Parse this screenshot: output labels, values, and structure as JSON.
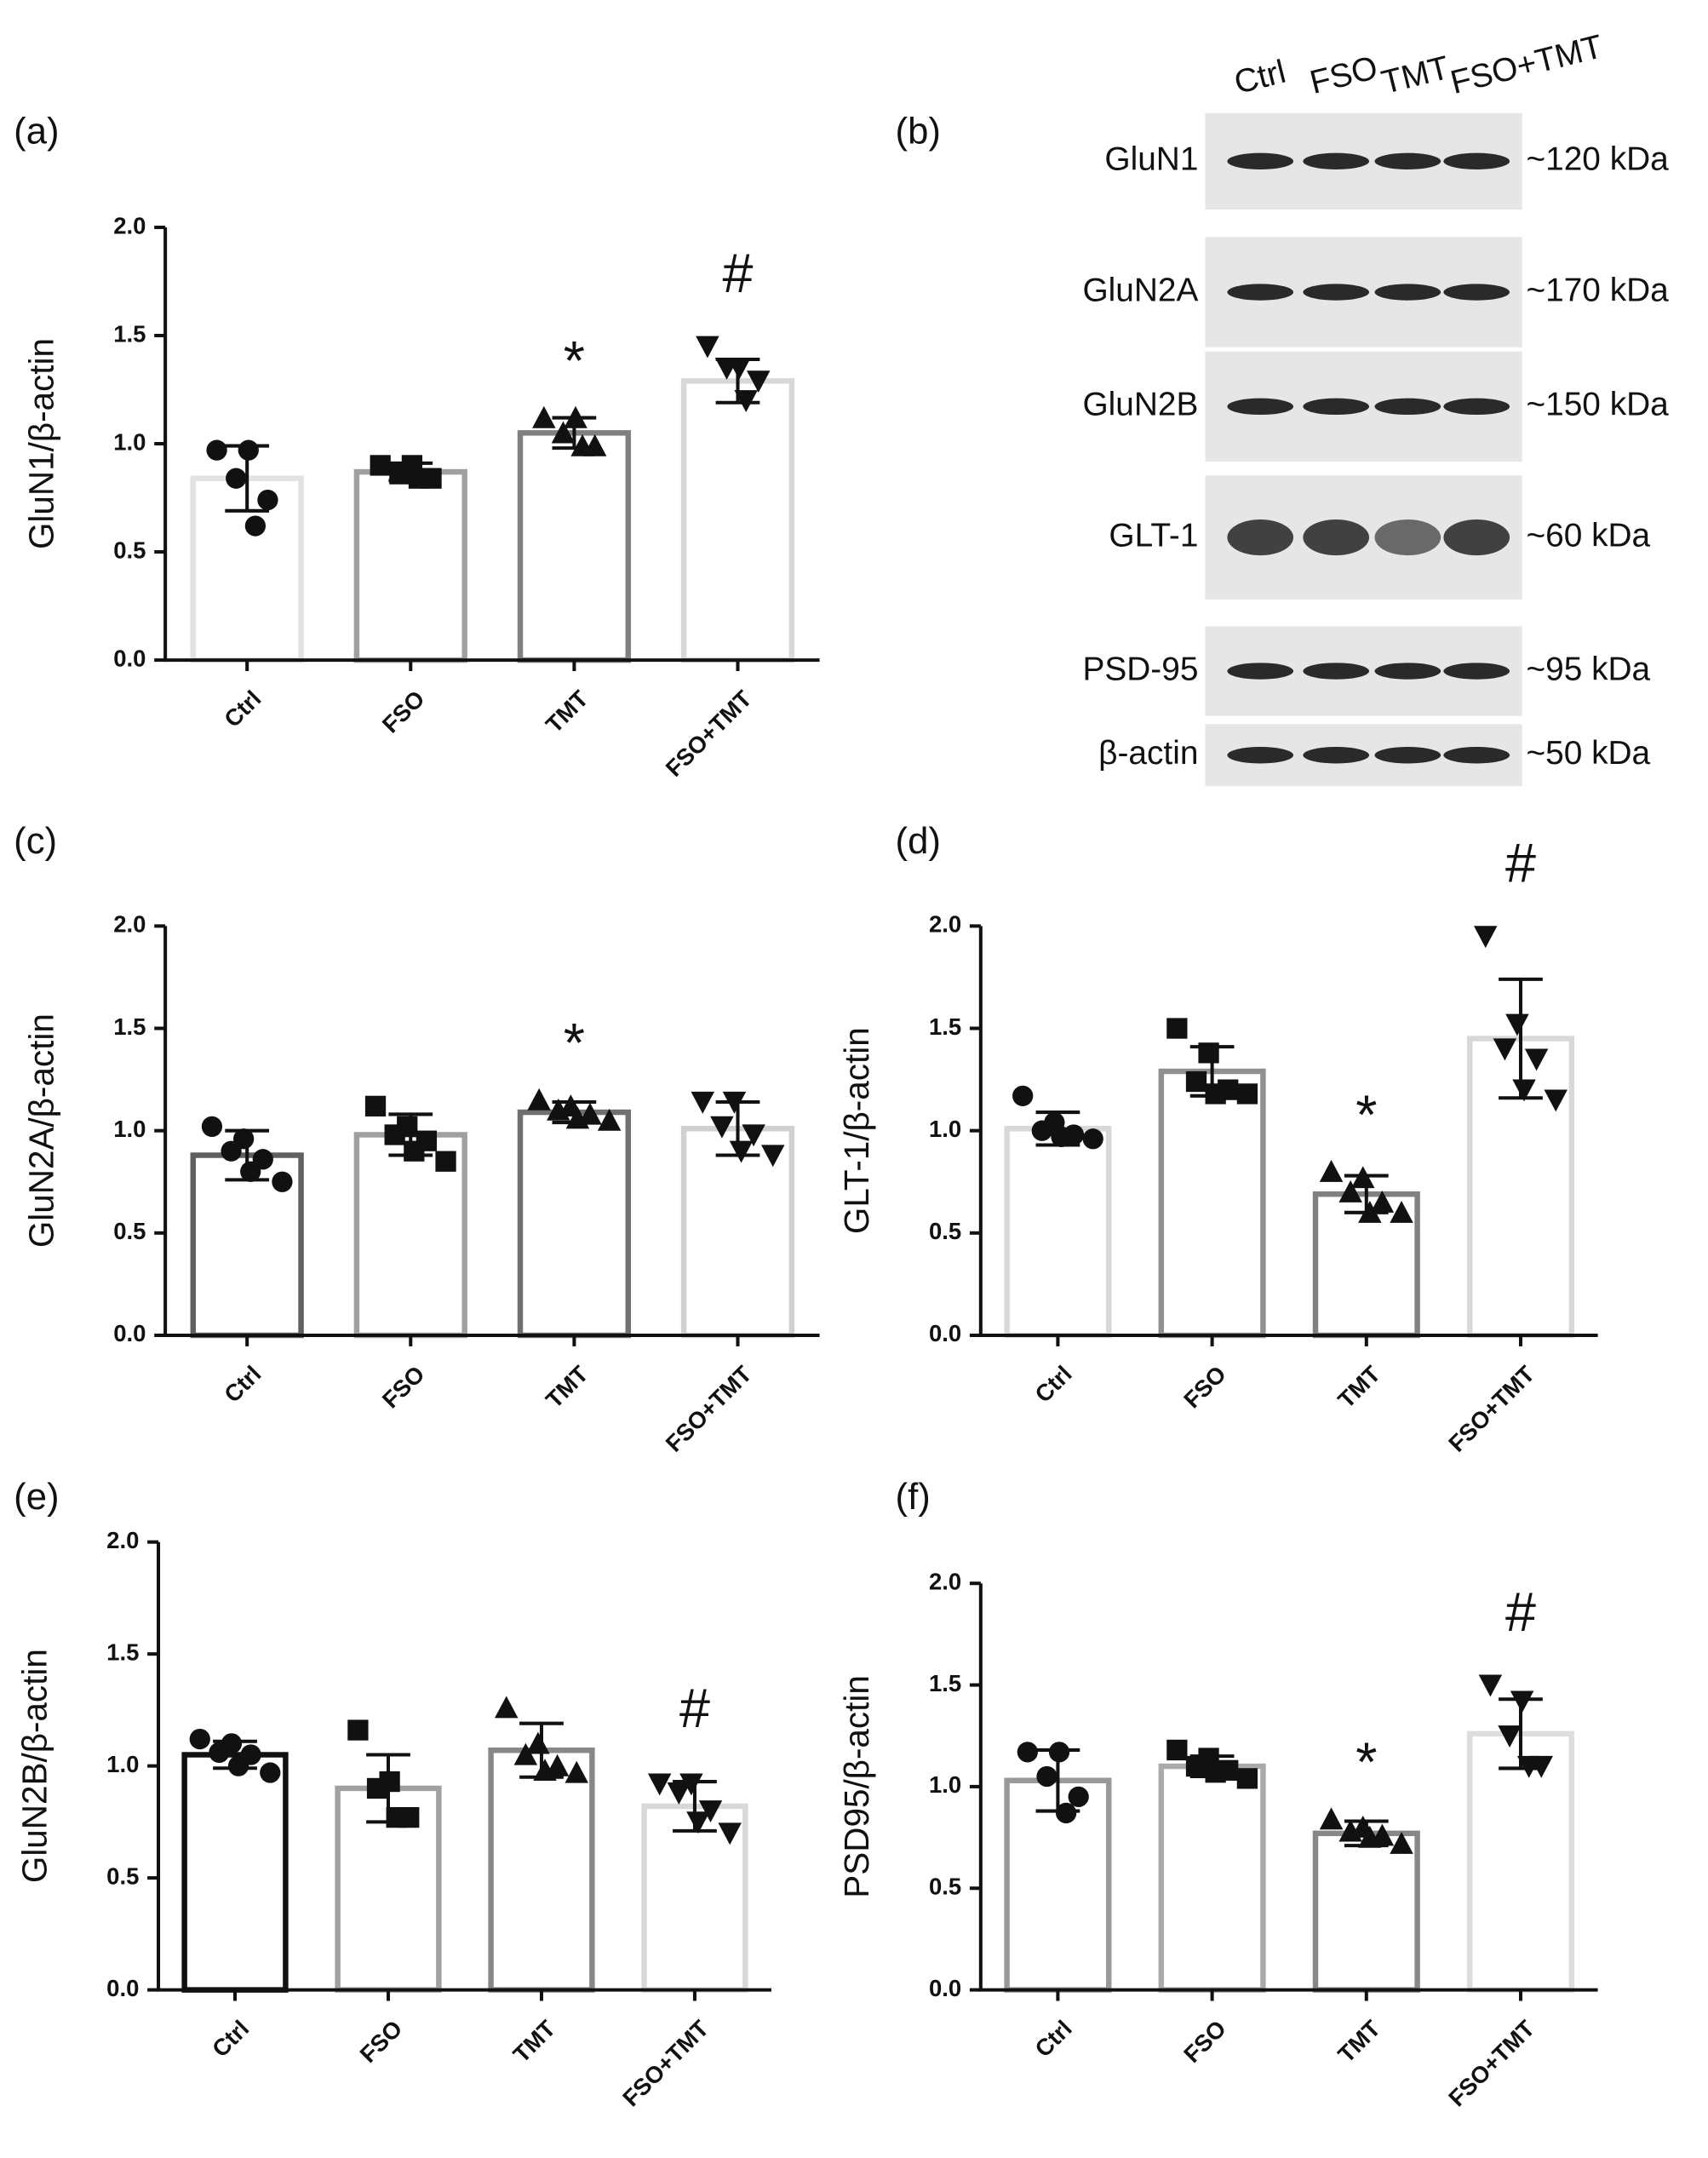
{
  "chart_data": [
    {
      "type": "bar",
      "panel_label": "(a)",
      "ylabel": "GluN1/β-actin",
      "categories": [
        "Ctrl",
        "FSO",
        "TMT",
        "FSO+TMT"
      ],
      "values": [
        0.84,
        0.87,
        1.05,
        1.29
      ],
      "errors": [
        0.15,
        0.04,
        0.07,
        0.1
      ],
      "points": [
        [
          0.97,
          0.97,
          0.84,
          0.74,
          0.62
        ],
        [
          0.9,
          0.9,
          0.86,
          0.84,
          0.84
        ],
        [
          1.12,
          1.12,
          1.05,
          0.99,
          0.99
        ],
        [
          1.45,
          1.35,
          1.35,
          1.29,
          1.2
        ]
      ],
      "markers": [
        "circle",
        "square",
        "triangle",
        "triangle-down"
      ],
      "colors": [
        "#e2e2e2",
        "#a0a0a0",
        "#808080",
        "#d8d8d8"
      ],
      "annotations": [
        null,
        null,
        "*",
        "#"
      ],
      "ylim": [
        0,
        2
      ],
      "yticks": [
        {
          "value": 0,
          "label": "0.0"
        },
        0.5,
        {
          "value": 1,
          "label": "1.0"
        },
        1.5,
        {
          "value": 2,
          "label": "2.0"
        }
      ]
    },
    {
      "type": "bar",
      "panel_label": "(c)",
      "ylabel": "GluN2A/β-actin",
      "categories": [
        "Ctrl",
        "FSO",
        "TMT",
        "FSO+TMT"
      ],
      "values": [
        0.88,
        0.98,
        1.09,
        1.01
      ],
      "errors": [
        0.12,
        0.1,
        0.05,
        0.13
      ],
      "points": [
        [
          1.02,
          0.96,
          0.9,
          0.86,
          0.8,
          0.75
        ],
        [
          1.12,
          1.02,
          0.98,
          0.95,
          0.9,
          0.85
        ],
        [
          1.15,
          1.12,
          1.1,
          1.08,
          1.06,
          1.05
        ],
        [
          1.14,
          1.14,
          1.02,
          0.98,
          0.9,
          0.88
        ]
      ],
      "markers": [
        "circle",
        "square",
        "triangle",
        "triangle-down"
      ],
      "colors": [
        "#606060",
        "#a0a0a0",
        "#707070",
        "#d0d0d0"
      ],
      "annotations": [
        null,
        null,
        "*",
        null
      ],
      "ylim": [
        0,
        2
      ],
      "yticks": [
        {
          "value": 0,
          "label": "0.0"
        },
        0.5,
        {
          "value": 1,
          "label": "1.0"
        },
        1.5,
        {
          "value": 2,
          "label": "2.0"
        }
      ]
    },
    {
      "type": "bar",
      "panel_label": "(d)",
      "ylabel": "GLT-1/β-actin",
      "categories": [
        "Ctrl",
        "FSO",
        "TMT",
        "FSO+TMT"
      ],
      "values": [
        1.01,
        1.29,
        0.69,
        1.45
      ],
      "errors": [
        0.08,
        0.12,
        0.09,
        0.29
      ],
      "points": [
        [
          1.17,
          1.04,
          1.0,
          0.98,
          0.97,
          0.96
        ],
        [
          1.5,
          1.38,
          1.24,
          1.2,
          1.18,
          1.18
        ],
        [
          0.8,
          0.77,
          0.7,
          0.65,
          0.6,
          0.6
        ],
        [
          1.95,
          1.52,
          1.4,
          1.35,
          1.2,
          1.15
        ]
      ],
      "markers": [
        "circle",
        "square",
        "triangle",
        "triangle-down"
      ],
      "colors": [
        "#d8d8d8",
        "#909090",
        "#808080",
        "#d8d8d8"
      ],
      "annotations": [
        null,
        null,
        "*",
        "#"
      ],
      "ylim": [
        0,
        2
      ],
      "yticks": [
        {
          "value": 0,
          "label": "0.0"
        },
        0.5,
        {
          "value": 1,
          "label": "1.0"
        },
        1.5,
        {
          "value": 2,
          "label": "2.0"
        }
      ]
    },
    {
      "type": "bar",
      "panel_label": "(e)",
      "ylabel": "GluN2B/β-actin",
      "categories": [
        "Ctrl",
        "FSO",
        "TMT",
        "FSO+TMT"
      ],
      "values": [
        1.05,
        0.9,
        1.07,
        0.82
      ],
      "errors": [
        0.06,
        0.15,
        0.12,
        0.11
      ],
      "points": [
        [
          1.12,
          1.1,
          1.06,
          1.05,
          1.0,
          0.97
        ],
        [
          1.16,
          0.93,
          0.9,
          0.77,
          0.77
        ],
        [
          1.26,
          1.1,
          1.05,
          1.0,
          0.98,
          0.97
        ],
        [
          0.92,
          0.92,
          0.88,
          0.8,
          0.75,
          0.7
        ]
      ],
      "markers": [
        "circle",
        "square",
        "triangle",
        "triangle-down"
      ],
      "colors": [
        "#111111",
        "#a0a0a0",
        "#888888",
        "#d8d8d8"
      ],
      "annotations": [
        null,
        null,
        null,
        "#"
      ],
      "ylim": [
        0,
        2
      ],
      "yticks": [
        {
          "value": 0,
          "label": "0.0"
        },
        0.5,
        {
          "value": 1,
          "label": "1.0"
        },
        1.5,
        {
          "value": 2,
          "label": "2.0"
        }
      ]
    },
    {
      "type": "bar",
      "panel_label": "(f)",
      "ylabel": "PSD95/β-actin",
      "categories": [
        "Ctrl",
        "FSO",
        "TMT",
        "FSO+TMT"
      ],
      "values": [
        1.03,
        1.1,
        0.77,
        1.26
      ],
      "errors": [
        0.15,
        0.05,
        0.06,
        0.17
      ],
      "points": [
        [
          1.17,
          1.17,
          1.05,
          0.95,
          0.87
        ],
        [
          1.18,
          1.14,
          1.1,
          1.08,
          1.07,
          1.04
        ],
        [
          0.84,
          0.8,
          0.78,
          0.76,
          0.75,
          0.72
        ],
        [
          1.5,
          1.42,
          1.25,
          1.1,
          1.1
        ]
      ],
      "markers": [
        "circle",
        "square",
        "triangle",
        "triangle-down"
      ],
      "colors": [
        "#999999",
        "#aaaaaa",
        "#888888",
        "#dddddd"
      ],
      "annotations": [
        null,
        null,
        "*",
        "#"
      ],
      "ylim": [
        0,
        2
      ],
      "yticks": [
        {
          "value": 0,
          "label": "0.0"
        },
        0.5,
        {
          "value": 1,
          "label": "1.0"
        },
        1.5,
        {
          "value": 2,
          "label": "2.0"
        }
      ]
    }
  ],
  "blot": {
    "panel_label": "(b)",
    "lanes": [
      "Ctrl",
      "FSO",
      "TMT",
      "FSO+TMT"
    ],
    "rows": [
      {
        "protein": "GluN1",
        "size": "~120 kDa"
      },
      {
        "protein": "GluN2A",
        "size": "~170 kDa"
      },
      {
        "protein": "GluN2B",
        "size": "~150 kDa"
      },
      {
        "protein": "GLT-1",
        "size": "~60 kDa"
      },
      {
        "protein": "PSD-95",
        "size": "~95 kDa"
      },
      {
        "protein": "β-actin",
        "size": "~50 kDa"
      }
    ]
  }
}
